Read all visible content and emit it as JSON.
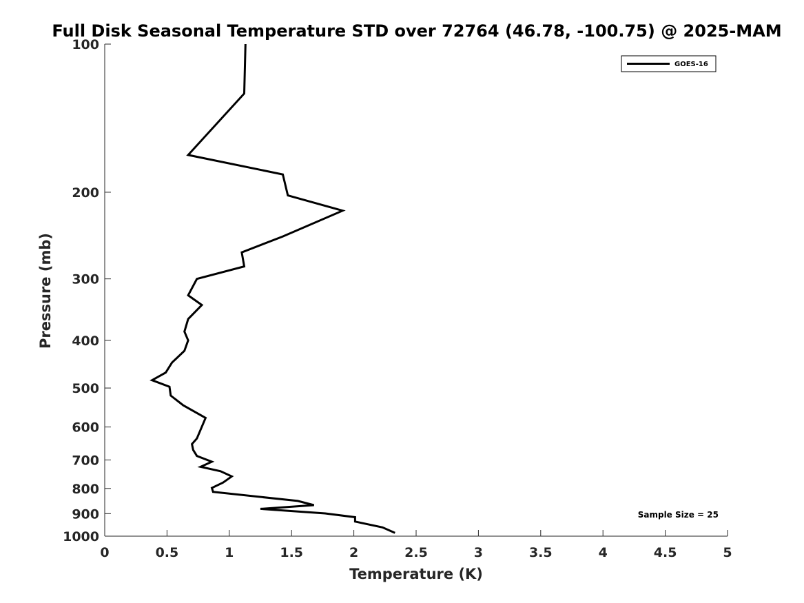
{
  "chart_data": {
    "type": "line",
    "title": "Full Disk Seasonal Temperature STD over 72764 (46.78, -100.75) @ 2025-MAM",
    "xlabel": "Temperature (K)",
    "ylabel": "Pressure (mb)",
    "xlim": [
      0,
      5
    ],
    "ylim": [
      100,
      1000
    ],
    "y_scale": "log",
    "y_reversed": true,
    "x_ticks": [
      "0",
      "0.5",
      "1",
      "1.5",
      "2",
      "2.5",
      "3",
      "3.5",
      "4",
      "4.5",
      "5"
    ],
    "y_ticks": [
      "100",
      "200",
      "300",
      "400",
      "500",
      "600",
      "700",
      "800",
      "900",
      "1000"
    ],
    "grid": false,
    "legend": {
      "position": "top-right"
    },
    "annotation": "Sample Size = 25",
    "series": [
      {
        "name": "GOES-16",
        "color": "#000000",
        "x": [
          1.13,
          1.12,
          0.67,
          1.43,
          1.47,
          1.91,
          1.43,
          1.1,
          1.12,
          0.74,
          0.67,
          0.78,
          0.67,
          0.64,
          0.67,
          0.64,
          0.54,
          0.49,
          0.38,
          0.52,
          0.53,
          0.63,
          0.81,
          0.74,
          0.7,
          0.71,
          0.74,
          0.86,
          0.77,
          0.93,
          1.02,
          0.95,
          0.86,
          0.87,
          1.55,
          1.68,
          1.25,
          1.77,
          2.01,
          2.01,
          2.23,
          2.33
        ],
        "y": [
          100,
          126,
          168,
          184,
          203,
          218,
          246,
          265,
          283,
          300,
          324,
          339,
          362,
          384,
          400,
          420,
          444,
          465,
          482,
          497,
          518,
          542,
          575,
          633,
          650,
          668,
          687,
          706,
          723,
          738,
          756,
          778,
          798,
          813,
          848,
          865,
          880,
          899,
          915,
          934,
          960,
          985
        ]
      }
    ]
  }
}
